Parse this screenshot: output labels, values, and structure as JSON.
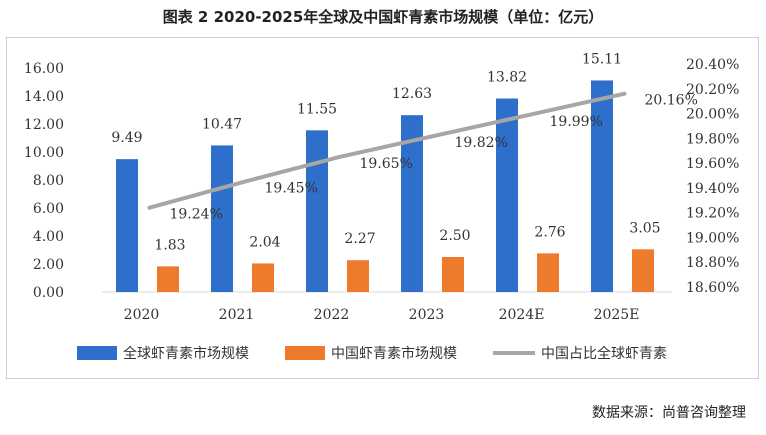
{
  "title": "图表 2 2020-2025年全球及中国虾青素市场规模（单位：亿元）",
  "source": "数据来源：尚普咨询整理",
  "colors": {
    "global": "#2E6FCB",
    "china": "#EE7A2C",
    "share": "#A6A6A6"
  },
  "chart_data": {
    "type": "bar",
    "categories": [
      "2020",
      "2021",
      "2022",
      "2023",
      "2024E",
      "2025E"
    ],
    "series": [
      {
        "name": "全球虾青素市场规模",
        "type": "bar",
        "axis": "left",
        "values": [
          9.49,
          10.47,
          11.55,
          12.63,
          13.82,
          15.11
        ],
        "labels": [
          "9.49",
          "10.47",
          "11.55",
          "12.63",
          "13.82",
          "15.11"
        ]
      },
      {
        "name": "中国虾青素市场规模",
        "type": "bar",
        "axis": "left",
        "values": [
          1.83,
          2.04,
          2.27,
          2.5,
          2.76,
          3.05
        ],
        "labels": [
          "1.83",
          "2.04",
          "2.27",
          "2.50",
          "2.76",
          "3.05"
        ]
      },
      {
        "name": "中国占比全球虾青素",
        "type": "line",
        "axis": "right",
        "values": [
          19.24,
          19.45,
          19.65,
          19.82,
          19.99,
          20.16
        ],
        "labels": [
          "19.24%",
          "19.45%",
          "19.65%",
          "19.82%",
          "19.99%",
          "20.16%"
        ]
      }
    ],
    "y_left": {
      "min": 0,
      "max": 16,
      "ticks": [
        "0.00",
        "2.00",
        "4.00",
        "6.00",
        "8.00",
        "10.00",
        "12.00",
        "14.00",
        "16.00"
      ]
    },
    "y_right": {
      "min": 18.6,
      "max": 20.4,
      "ticks": [
        "18.60%",
        "18.80%",
        "19.00%",
        "19.20%",
        "19.40%",
        "19.60%",
        "19.80%",
        "20.00%",
        "20.20%",
        "20.40%"
      ]
    },
    "grid": false,
    "legend_position": "bottom"
  }
}
